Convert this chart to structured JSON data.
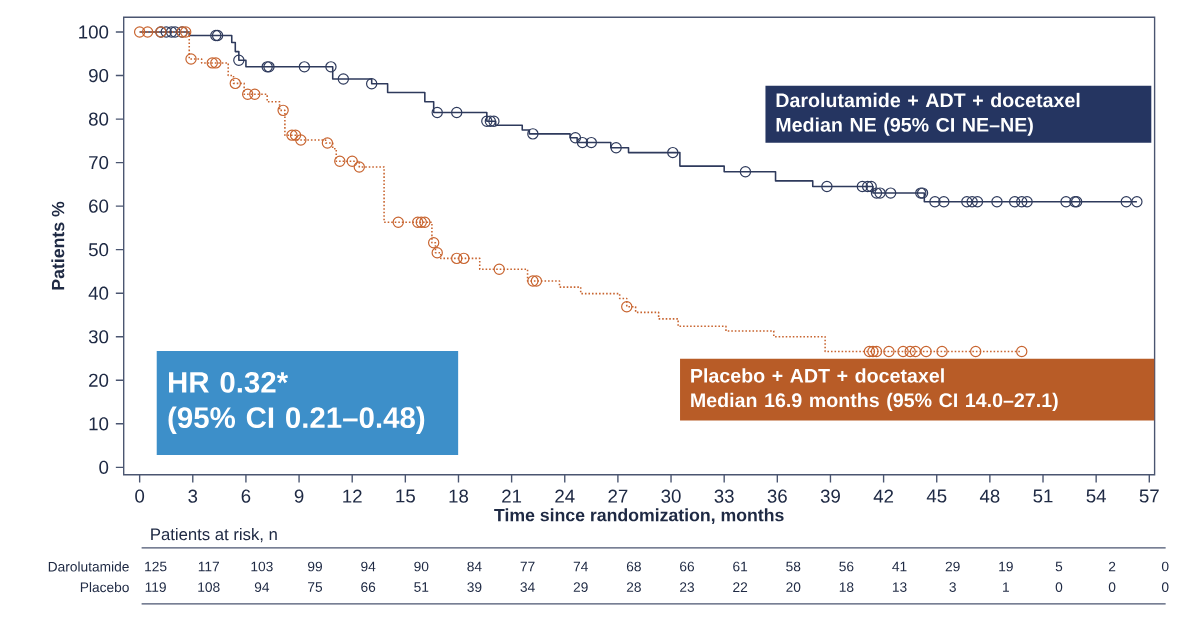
{
  "chart_data": {
    "type": "step",
    "xlabel": "Time since randomization, months",
    "ylabel": "Patients %",
    "xlim": [
      -0.9,
      57.3
    ],
    "ylim": [
      -1.7,
      103.4
    ],
    "xticks": [
      0,
      3,
      6,
      9,
      12,
      15,
      18,
      21,
      24,
      27,
      30,
      33,
      36,
      39,
      42,
      45,
      48,
      51,
      54,
      57
    ],
    "yticks": [
      0,
      10,
      20,
      30,
      40,
      50,
      60,
      70,
      80,
      90,
      100
    ],
    "grid": false,
    "legend": false,
    "series": [
      {
        "name": "Darolutamide + ADT + docetaxel",
        "color": "#2e3a5c",
        "line_style": "solid",
        "x": [
          0,
          2.8,
          5.2,
          5.4,
          5.6,
          6.0,
          10.9,
          13.1,
          14.0,
          16.1,
          16.6,
          19.6,
          20.1,
          21.6,
          22.0,
          24.3,
          24.7,
          26.6,
          27.6,
          30.5,
          33.0,
          35.9,
          38.0,
          41.4,
          44.3,
          56.3
        ],
        "values": [
          100,
          99.2,
          97.6,
          95.5,
          93.5,
          92.0,
          89.2,
          88.1,
          86.1,
          84.0,
          81.5,
          79.5,
          78.6,
          77.5,
          76.6,
          75.7,
          74.6,
          73.4,
          72.3,
          69.2,
          67.9,
          65.8,
          64.5,
          63.0,
          61.0,
          61.0
        ]
      },
      {
        "name": "Placebo + ADT + docetaxel",
        "color": "#c8642f",
        "line_style": "dotted",
        "x": [
          0,
          2.8,
          3.5,
          5.0,
          5.3,
          5.9,
          7.2,
          7.9,
          8.2,
          8.9,
          10.5,
          10.9,
          11.1,
          12.4,
          13.8,
          16.5,
          16.7,
          17.0,
          19.2,
          21.9,
          23.7,
          24.9,
          27.1,
          27.5,
          28.0,
          29.3,
          30.4,
          33.1,
          35.8,
          38.7,
          49.8
        ],
        "values": [
          100,
          93.8,
          92.9,
          90.0,
          88.2,
          85.7,
          84.0,
          82.0,
          76.3,
          75.2,
          74.5,
          73.2,
          70.3,
          69.0,
          56.3,
          51.6,
          49.3,
          48.0,
          45.5,
          42.8,
          41.4,
          39.9,
          38.8,
          36.9,
          35.6,
          34.1,
          32.4,
          31.3,
          30.0,
          26.6,
          26.6
        ]
      },
      {
        "type": "scatter",
        "color": "#2e3a5c",
        "marker": "circle",
        "x": [
          1.2,
          1.5,
          1.8,
          2.0,
          2.4,
          4.3,
          4.4,
          5.6,
          7.2,
          7.3,
          9.3,
          10.8,
          11.5,
          13.1,
          16.8,
          17.9,
          19.6,
          19.8,
          20.0,
          22.2,
          24.6,
          25.0,
          25.5,
          26.9,
          30.1,
          34.2,
          38.8,
          40.8,
          41.1,
          41.3,
          41.6,
          41.8,
          42.4,
          44.1,
          44.2,
          44.9,
          45.4,
          46.7,
          47.0,
          47.3,
          48.4,
          49.4,
          49.8,
          50.1,
          52.3,
          52.8,
          52.9,
          55.7,
          56.3
        ],
        "values": [
          100,
          100,
          100,
          100,
          100,
          99.2,
          99.2,
          93.5,
          92,
          92,
          92,
          92,
          89.2,
          88.1,
          81.5,
          81.5,
          79.5,
          79.5,
          79.5,
          76.6,
          75.7,
          74.6,
          74.6,
          73.4,
          72.3,
          67.9,
          64.5,
          64.5,
          64.5,
          64.5,
          63.0,
          63.0,
          63.0,
          63.0,
          63.0,
          61,
          61,
          61,
          61,
          61,
          61,
          61,
          61,
          61,
          61,
          61,
          61,
          61,
          61
        ]
      },
      {
        "type": "scatter",
        "color": "#c8642f",
        "marker": "circle",
        "x": [
          0.0,
          0.45,
          1.2,
          2.4,
          2.6,
          2.9,
          4.1,
          4.3,
          5.4,
          6.1,
          6.5,
          8.1,
          8.6,
          8.8,
          9.1,
          10.6,
          11.3,
          12.0,
          12.4,
          14.6,
          15.7,
          15.9,
          16.1,
          16.6,
          16.8,
          17.9,
          18.3,
          20.3,
          22.2,
          22.4,
          27.5,
          41.2,
          41.4,
          41.6,
          42.3,
          43.1,
          43.5,
          43.8,
          44.4,
          45.3,
          47.2,
          49.8
        ],
        "values": [
          100,
          100,
          100,
          100,
          100,
          93.8,
          92.9,
          92.9,
          88.2,
          85.7,
          85.7,
          82.0,
          76.3,
          76.3,
          75.2,
          74.5,
          70.3,
          70.3,
          69.0,
          56.3,
          56.3,
          56.3,
          56.3,
          51.6,
          49.3,
          48.0,
          48.0,
          45.5,
          42.8,
          42.8,
          36.9,
          26.6,
          26.6,
          26.6,
          26.6,
          26.6,
          26.6,
          26.6,
          26.6,
          26.6,
          26.6,
          26.6
        ]
      }
    ],
    "annotations": [
      "Median NE (95% CI NE–NE)",
      "Median 16.9 months (95% CI 14.0–27.1)",
      "HR 0.32*",
      "(95% CI 0.21–0.48)",
      "Patients at risk, n",
      "Darolutamide",
      "Placebo",
      "125",
      "117",
      "103",
      "99",
      "94",
      "90",
      "84",
      "77",
      "74",
      "68",
      "66",
      "61",
      "58",
      "56",
      "41",
      "29",
      "19",
      "5",
      "2",
      "0",
      "119",
      "108",
      "94",
      "75",
      "66",
      "51",
      "39",
      "34",
      "29",
      "28",
      "23",
      "22",
      "20",
      "18",
      "13",
      "3",
      "1",
      "0",
      "0",
      "0"
    ]
  }
}
